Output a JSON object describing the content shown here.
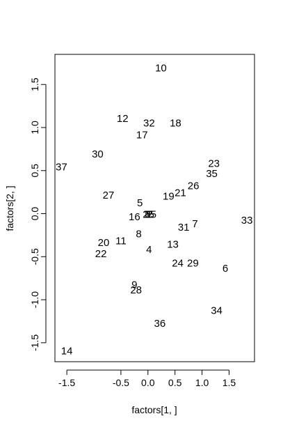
{
  "chart_data": {
    "type": "scatter",
    "title": "",
    "xlabel": "factors[1, ]",
    "ylabel": "factors[2, ]",
    "xlim": [
      -1.72,
      1.97
    ],
    "ylim": [
      -1.72,
      1.85
    ],
    "x_ticks": [
      {
        "value": -1.5,
        "label": "-1.5"
      },
      {
        "value": -0.5,
        "label": "-0.5"
      },
      {
        "value": 0.0,
        "label": "0.0"
      },
      {
        "value": 0.5,
        "label": "0.5"
      },
      {
        "value": 1.0,
        "label": "1.0"
      },
      {
        "value": 1.5,
        "label": "1.5"
      }
    ],
    "y_ticks": [
      {
        "value": -1.5,
        "label": "-1.5"
      },
      {
        "value": -1.0,
        "label": "-1.0"
      },
      {
        "value": -0.5,
        "label": "-0.5"
      },
      {
        "value": 0.0,
        "label": "0.0"
      },
      {
        "value": 0.5,
        "label": "0.5"
      },
      {
        "value": 1.0,
        "label": "1.0"
      },
      {
        "value": 1.5,
        "label": "1.5"
      }
    ],
    "grid": false,
    "points": [
      {
        "label": "1",
        "x": -0.04,
        "y": -0.01
      },
      {
        "label": "2",
        "x": 0.03,
        "y": -0.01
      },
      {
        "label": "3",
        "x": 0.0,
        "y": -0.01
      },
      {
        "label": "4",
        "x": 0.02,
        "y": -0.42
      },
      {
        "label": "5",
        "x": -0.15,
        "y": 0.12
      },
      {
        "label": "6",
        "x": 1.43,
        "y": -0.64
      },
      {
        "label": "7",
        "x": 0.87,
        "y": -0.12
      },
      {
        "label": "8",
        "x": -0.17,
        "y": -0.24
      },
      {
        "label": "9",
        "x": -0.25,
        "y": -0.83
      },
      {
        "label": "10",
        "x": 0.24,
        "y": 1.69
      },
      {
        "label": "11",
        "x": -0.5,
        "y": -0.32
      },
      {
        "label": "12",
        "x": -0.47,
        "y": 1.1
      },
      {
        "label": "13",
        "x": 0.46,
        "y": -0.36
      },
      {
        "label": "14",
        "x": -1.5,
        "y": -1.6
      },
      {
        "label": "15",
        "x": 0.05,
        "y": -0.01
      },
      {
        "label": "16",
        "x": -0.25,
        "y": -0.04
      },
      {
        "label": "17",
        "x": -0.11,
        "y": 0.91
      },
      {
        "label": "18",
        "x": 0.51,
        "y": 1.05
      },
      {
        "label": "19",
        "x": 0.38,
        "y": 0.2
      },
      {
        "label": "20",
        "x": -0.82,
        "y": -0.34
      },
      {
        "label": "21",
        "x": 0.6,
        "y": 0.24
      },
      {
        "label": "22",
        "x": -0.87,
        "y": -0.47
      },
      {
        "label": "23",
        "x": 1.22,
        "y": 0.58
      },
      {
        "label": "24",
        "x": 0.55,
        "y": -0.58
      },
      {
        "label": "25",
        "x": 0.01,
        "y": -0.01
      },
      {
        "label": "26",
        "x": 0.84,
        "y": 0.32
      },
      {
        "label": "27",
        "x": -0.73,
        "y": 0.21
      },
      {
        "label": "28",
        "x": -0.22,
        "y": -0.89
      },
      {
        "label": "29",
        "x": 0.83,
        "y": -0.58
      },
      {
        "label": "30",
        "x": -0.93,
        "y": 0.69
      },
      {
        "label": "31",
        "x": 0.66,
        "y": -0.16
      },
      {
        "label": "32",
        "x": 0.02,
        "y": 1.05
      },
      {
        "label": "33",
        "x": 1.83,
        "y": -0.08
      },
      {
        "label": "34",
        "x": 1.27,
        "y": -1.13
      },
      {
        "label": "35",
        "x": 1.18,
        "y": 0.46
      },
      {
        "label": "36",
        "x": 0.22,
        "y": -1.28
      },
      {
        "label": "37",
        "x": -1.6,
        "y": 0.54
      }
    ]
  }
}
